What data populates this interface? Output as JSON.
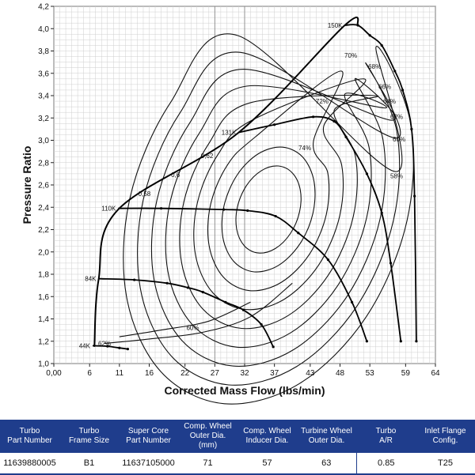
{
  "chart_data": {
    "type": "line",
    "title": "",
    "xlabel": "Corrected Mass Flow (lbs/min)",
    "ylabel": "Pressure Ratio",
    "xlim": [
      0,
      64
    ],
    "ylim": [
      1.0,
      4.2
    ],
    "x_tick_labels": [
      "0,00",
      "6",
      "11",
      "16",
      "22",
      "27",
      "32",
      "37",
      "43",
      "48",
      "53",
      "59",
      "64"
    ],
    "y_tick_labels": [
      "1,0",
      "1,2",
      "1,4",
      "1,6",
      "1,8",
      "2,0",
      "2,2",
      "2,4",
      "2,6",
      "2,8",
      "3,0",
      "3,2",
      "3,4",
      "3,6",
      "3,8",
      "4,0",
      "4,2"
    ],
    "grid": true,
    "surge_line": [
      [
        6.8,
        1.15
      ],
      [
        7.5,
        1.75
      ],
      [
        10.8,
        2.38
      ],
      [
        31,
        3.07
      ],
      [
        48.8,
        4.03
      ],
      [
        51,
        4.03
      ]
    ],
    "speed_lines": [
      {
        "label": "44K",
        "points": [
          [
            6.5,
            1.16
          ],
          [
            9,
            1.155
          ],
          [
            11,
            1.14
          ],
          [
            12.4,
            1.13
          ]
        ]
      },
      {
        "label": "84K",
        "points": [
          [
            7.5,
            1.76
          ],
          [
            13.5,
            1.75
          ],
          [
            19,
            1.72
          ],
          [
            22.5,
            1.68
          ],
          [
            25,
            1.64
          ],
          [
            28.8,
            1.55
          ],
          [
            31.8,
            1.48
          ],
          [
            34.8,
            1.35
          ],
          [
            36.8,
            1.15
          ]
        ]
      },
      {
        "label": "110K",
        "points": [
          [
            10.8,
            2.39
          ],
          [
            18,
            2.39
          ],
          [
            28.5,
            2.38
          ],
          [
            32.5,
            2.37
          ],
          [
            37.2,
            2.32
          ],
          [
            41,
            2.17
          ],
          [
            46,
            1.93
          ],
          [
            50,
            1.55
          ],
          [
            52.5,
            1.2
          ]
        ]
      },
      {
        "label": "131K",
        "points": [
          [
            31,
            3.07
          ],
          [
            37,
            3.14
          ],
          [
            43.5,
            3.21
          ],
          [
            47,
            3.17
          ],
          [
            49,
            3.03
          ],
          [
            52.5,
            2.7
          ],
          [
            55,
            2.35
          ],
          [
            56.5,
            1.9
          ],
          [
            58.2,
            1.2
          ]
        ]
      },
      {
        "label": "150K",
        "points": [
          [
            48.8,
            4.03
          ],
          [
            51,
            4.03
          ],
          [
            53,
            3.94
          ],
          [
            55,
            3.85
          ],
          [
            57.2,
            3.62
          ],
          [
            58.5,
            3.45
          ],
          [
            60,
            3.1
          ],
          [
            60.5,
            2.5
          ],
          [
            60.8,
            1.2
          ]
        ]
      }
    ],
    "efficiency_labels": [
      {
        "label": "62%",
        "x": 8.5,
        "y": 1.16
      },
      {
        "label": "60%",
        "x": 23.3,
        "y": 1.3
      },
      {
        "label": "0,58",
        "x": 15.2,
        "y": 2.5
      },
      {
        "label": "0,6",
        "x": 20.4,
        "y": 2.67
      },
      {
        "label": "0,62",
        "x": 25.7,
        "y": 2.84
      },
      {
        "label": "74%",
        "x": 42.1,
        "y": 2.91
      },
      {
        "label": "72%",
        "x": 45,
        "y": 3.33
      },
      {
        "label": "70%",
        "x": 49.8,
        "y": 3.74
      },
      {
        "label": "68%",
        "x": 53.8,
        "y": 3.64
      },
      {
        "label": "66%",
        "x": 55.5,
        "y": 3.46
      },
      {
        "label": "64%",
        "x": 56.3,
        "y": 3.33
      },
      {
        "label": "62%",
        "x": 57.5,
        "y": 3.19
      },
      {
        "label": "60%",
        "x": 57.9,
        "y": 2.99
      },
      {
        "label": "58%",
        "x": 57.5,
        "y": 2.66
      }
    ]
  },
  "spec_table": {
    "headers": [
      [
        "Turbo",
        "Part Number"
      ],
      [
        "Turbo",
        "Frame Size"
      ],
      [
        "Super Core",
        "Part Number"
      ],
      [
        "Comp. Wheel",
        "Outer Dia. (mm)"
      ],
      [
        "Comp. Wheel",
        "Inducer Dia."
      ],
      [
        "Turbine Wheel",
        "Outer Dia."
      ],
      [
        "Turbo",
        "A/R"
      ],
      [
        "Inlet Flange",
        "Config."
      ]
    ],
    "values": [
      "11639880005",
      "B1",
      "11637105000",
      "71",
      "57",
      "63",
      "0.85",
      "T25"
    ]
  }
}
